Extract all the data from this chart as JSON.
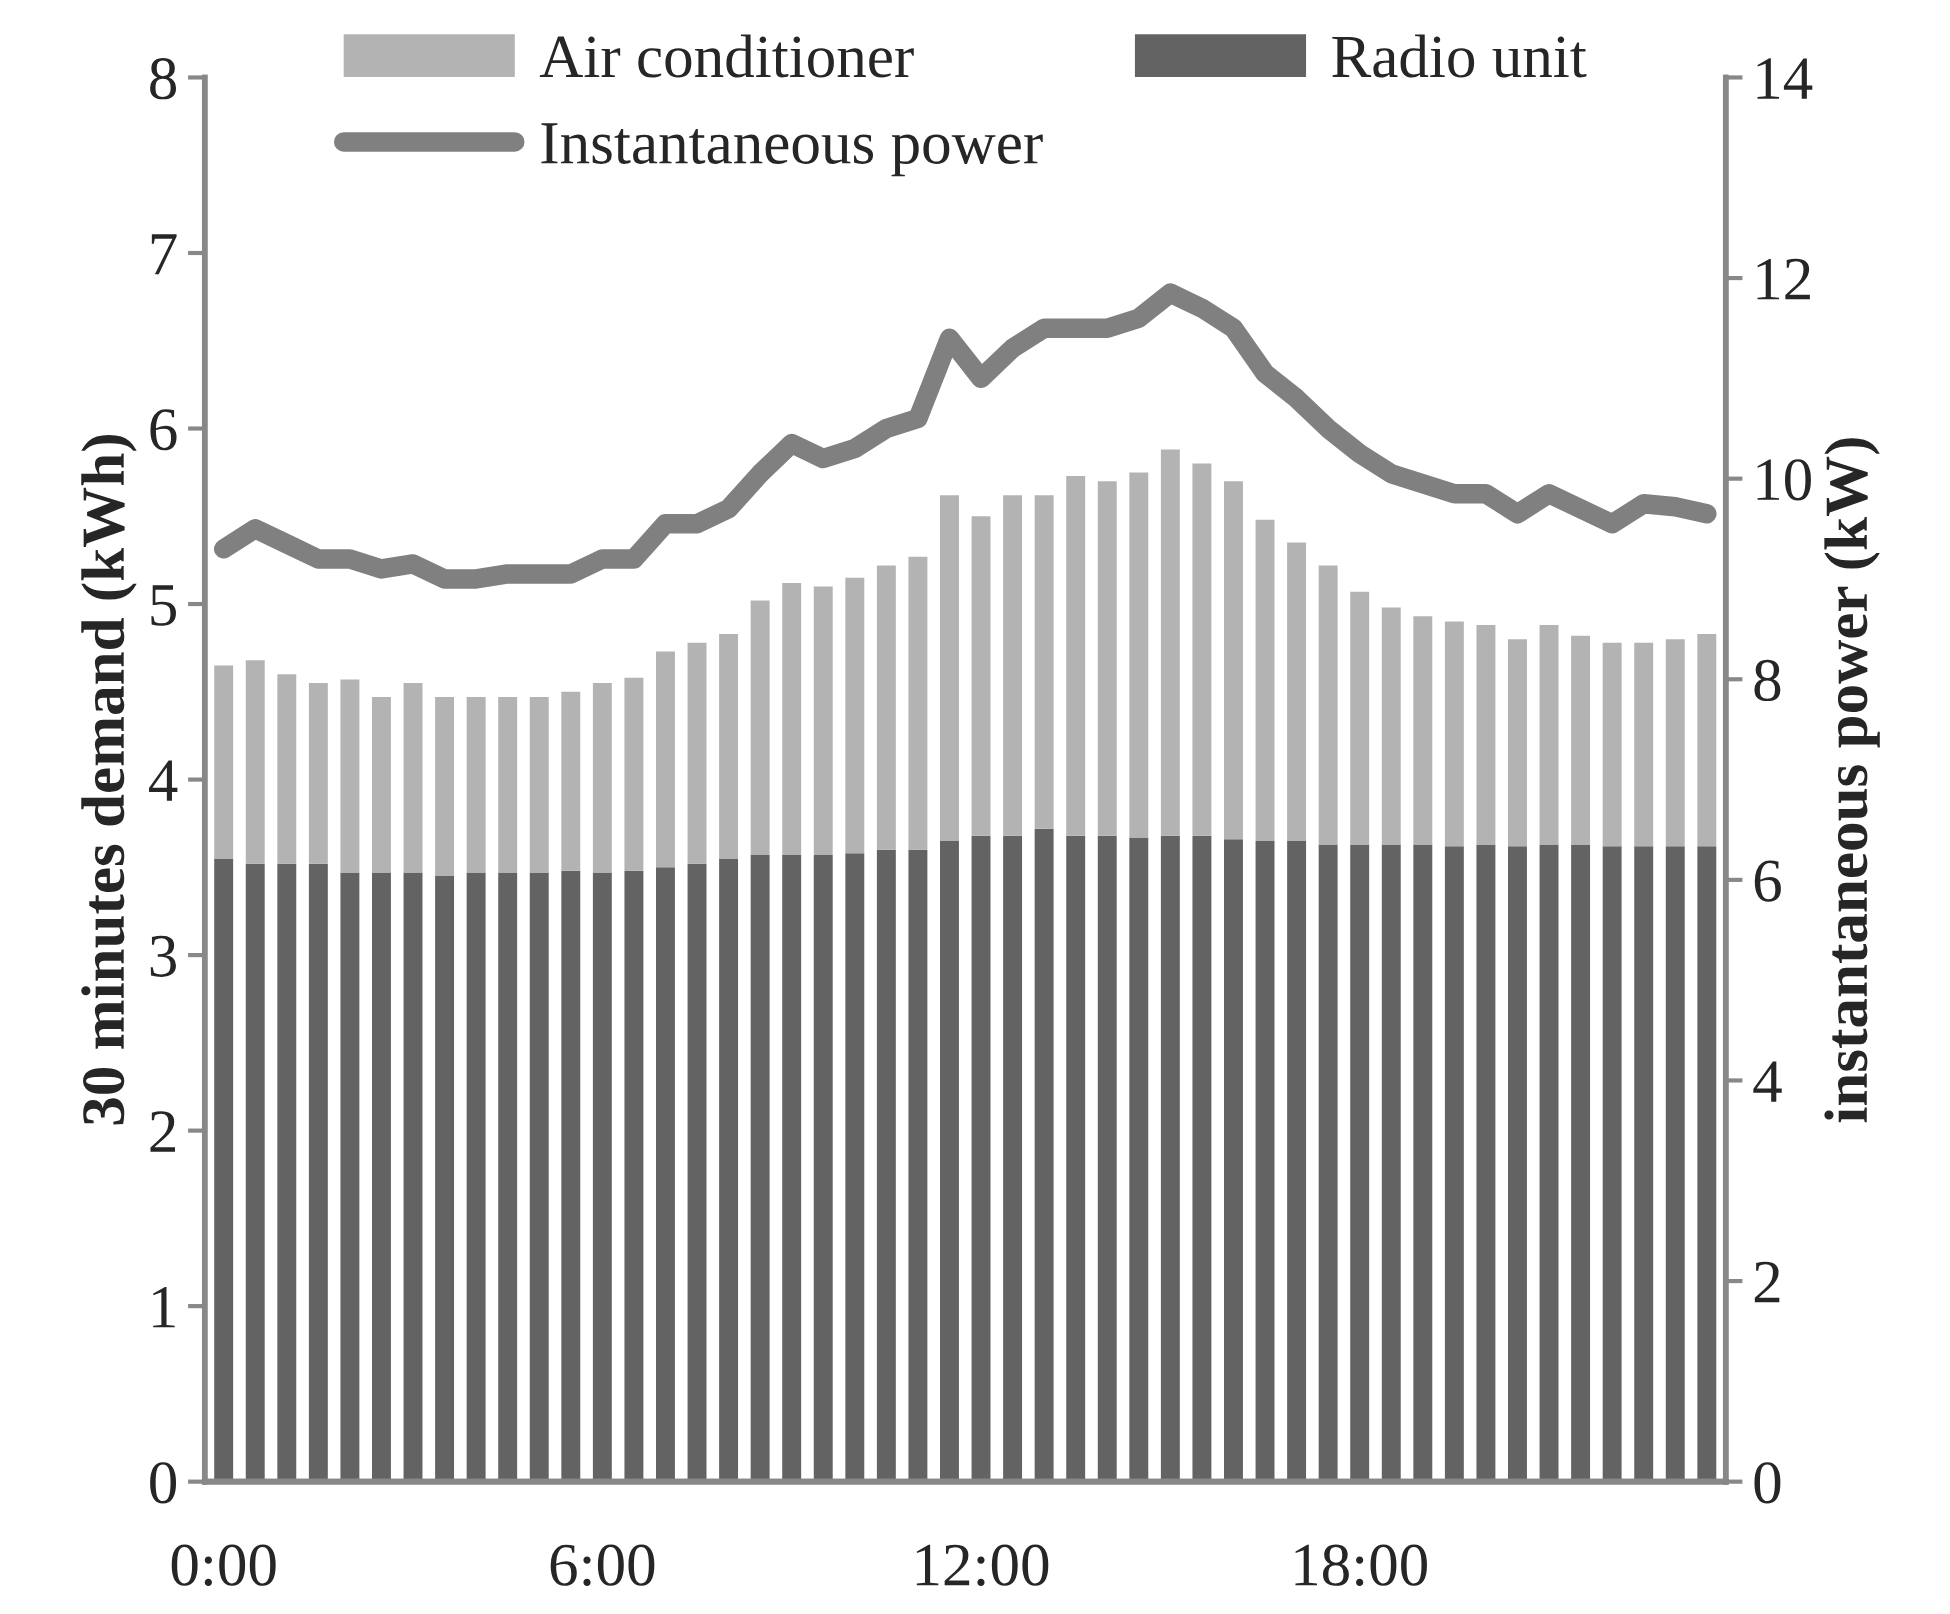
{
  "chart_data": {
    "type": "bar",
    "stacked": true,
    "xlabel": null,
    "ylabel": "30 minutes demand (kWh)",
    "y2label": "instantaneous power (kW)",
    "categories": [
      "0:00",
      null,
      null,
      null,
      null,
      null,
      null,
      null,
      null,
      null,
      null,
      null,
      "6:00",
      null,
      null,
      null,
      null,
      null,
      null,
      null,
      null,
      null,
      null,
      null,
      "12:00",
      null,
      null,
      null,
      null,
      null,
      null,
      null,
      null,
      null,
      null,
      null,
      "18:00",
      null,
      null,
      null,
      null,
      null,
      null,
      null,
      null,
      null,
      null,
      null
    ],
    "series": [
      {
        "name": "Radio unit",
        "color": "#636363",
        "values": [
          3.55,
          3.52,
          3.52,
          3.52,
          3.47,
          3.47,
          3.47,
          3.45,
          3.47,
          3.47,
          3.47,
          3.48,
          3.47,
          3.48,
          3.5,
          3.52,
          3.55,
          3.57,
          3.57,
          3.57,
          3.58,
          3.6,
          3.6,
          3.65,
          3.68,
          3.68,
          3.72,
          3.68,
          3.68,
          3.67,
          3.68,
          3.68,
          3.66,
          3.65,
          3.65,
          3.63,
          3.63,
          3.63,
          3.63,
          3.62,
          3.63,
          3.62,
          3.63,
          3.63,
          3.62,
          3.62,
          3.62,
          3.62
        ]
      },
      {
        "name": "Air conditioner",
        "color": "#b3b3b3",
        "values": [
          1.1,
          1.16,
          1.08,
          1.03,
          1.1,
          1.0,
          1.08,
          1.02,
          1.0,
          1.0,
          1.0,
          1.02,
          1.08,
          1.1,
          1.23,
          1.26,
          1.28,
          1.45,
          1.55,
          1.53,
          1.57,
          1.62,
          1.67,
          1.97,
          1.82,
          1.94,
          1.9,
          2.05,
          2.02,
          2.08,
          2.2,
          2.12,
          2.04,
          1.83,
          1.7,
          1.59,
          1.44,
          1.35,
          1.3,
          1.28,
          1.25,
          1.18,
          1.25,
          1.19,
          1.16,
          1.16,
          1.18,
          1.21
        ]
      },
      {
        "name": "Instantaneous power",
        "type": "line",
        "axis": "y2",
        "color": "#808080",
        "line_style": "solid",
        "values": [
          9.3,
          9.5,
          9.35,
          9.2,
          9.2,
          9.1,
          9.15,
          9.0,
          9.0,
          9.05,
          9.05,
          9.05,
          9.2,
          9.2,
          9.55,
          9.55,
          9.7,
          10.05,
          10.35,
          10.2,
          10.3,
          10.5,
          10.6,
          11.4,
          11.0,
          11.3,
          11.5,
          11.5,
          11.5,
          11.6,
          11.85,
          11.7,
          11.5,
          11.05,
          10.8,
          10.5,
          10.25,
          10.05,
          9.95,
          9.85,
          9.85,
          9.65,
          9.85,
          9.7,
          9.55,
          9.75,
          9.72,
          9.65
        ]
      }
    ],
    "ylim": [
      0,
      8
    ],
    "yticks": [
      0,
      1,
      2,
      3,
      4,
      5,
      6,
      7,
      8
    ],
    "y2lim": [
      0,
      14
    ],
    "y2ticks": [
      0,
      2,
      4,
      6,
      8,
      10,
      12,
      14
    ],
    "legend": "top",
    "grid": false
  }
}
